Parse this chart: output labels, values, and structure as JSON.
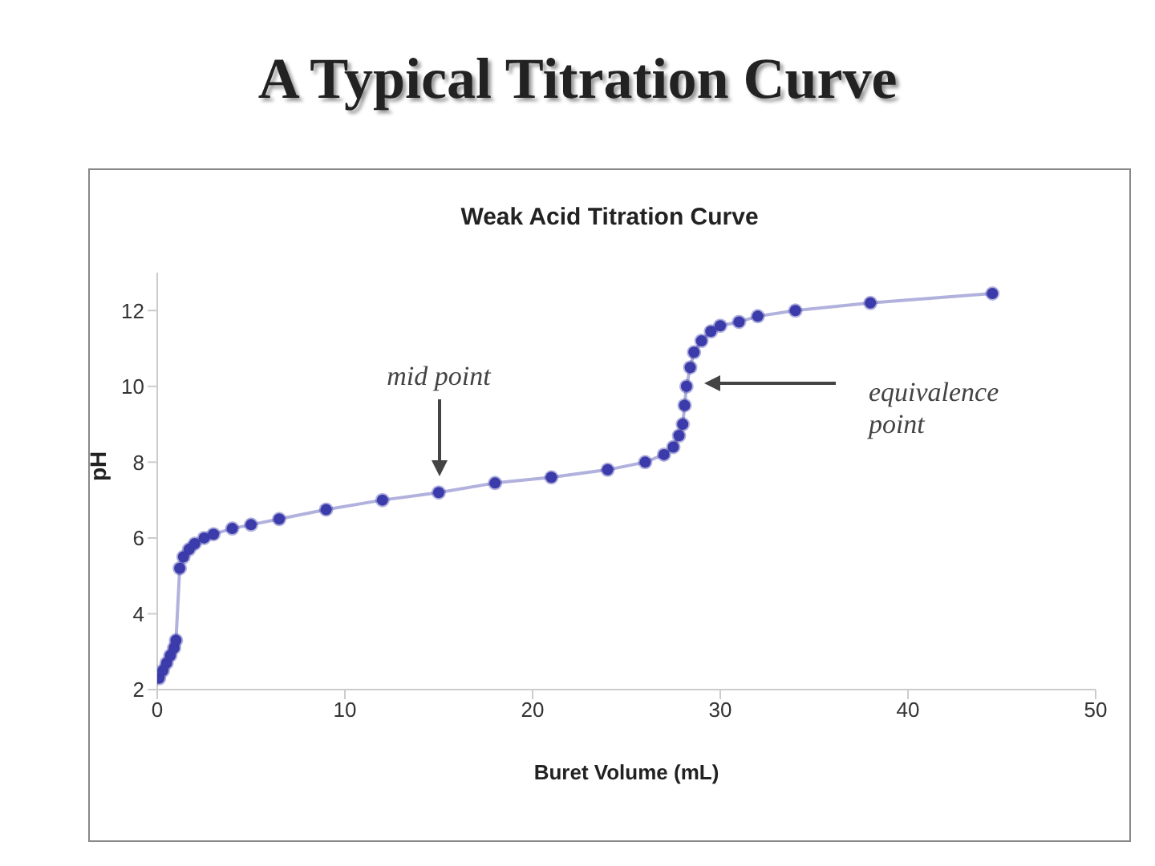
{
  "chart_data": {
    "type": "line",
    "title": "A Typical Titration Curve",
    "subtitle": "Weak Acid Titration Curve",
    "xlabel": "Buret Volume (mL)",
    "ylabel": "pH",
    "xlim": [
      0,
      50
    ],
    "xticks": [
      0,
      10,
      20,
      30,
      40,
      50
    ],
    "ylim": [
      2,
      13
    ],
    "yticks": [
      2,
      4,
      6,
      8,
      10,
      12
    ],
    "grid": false,
    "marker": "circle",
    "series": [
      {
        "color": "#3b3bab",
        "x": [
          0.1,
          0.3,
          0.5,
          0.7,
          0.9,
          1.0,
          1.2,
          1.4,
          1.7,
          2.0,
          2.5,
          3,
          4,
          5,
          6.5,
          9,
          12,
          15,
          18,
          21,
          24,
          26,
          27,
          27.5,
          27.8,
          28,
          28.1,
          28.2,
          28.4,
          28.6,
          29,
          29.5,
          30,
          31,
          32,
          34,
          38,
          44.5
        ],
        "values": [
          2.3,
          2.5,
          2.7,
          2.9,
          3.1,
          3.3,
          5.2,
          5.5,
          5.7,
          5.85,
          6.0,
          6.1,
          6.25,
          6.35,
          6.5,
          6.75,
          7.0,
          7.2,
          7.45,
          7.6,
          7.8,
          8.0,
          8.2,
          8.4,
          8.7,
          9.0,
          9.5,
          10.0,
          10.5,
          10.9,
          11.2,
          11.45,
          11.6,
          11.7,
          11.85,
          12.0,
          12.2,
          12.45
        ]
      }
    ],
    "annotations": [
      "mid point",
      "equivalence point"
    ]
  }
}
